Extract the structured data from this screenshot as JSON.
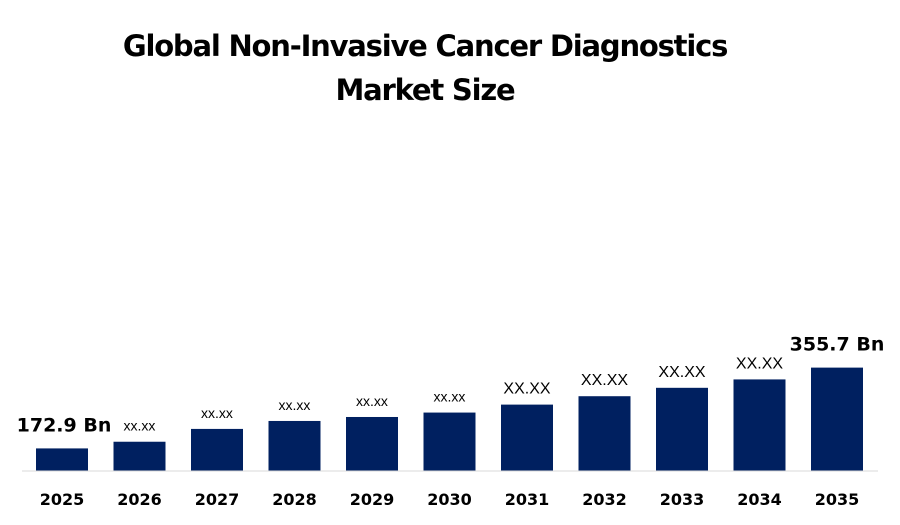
{
  "chart_data": {
    "type": "bar",
    "title_lines": [
      "Global Non-Invasive Cancer Diagnostics",
      "Market Size"
    ],
    "categories": [
      "2025",
      "2026",
      "2027",
      "2028",
      "2029",
      "2030",
      "2031",
      "2032",
      "2033",
      "2034",
      "2035"
    ],
    "values": [
      172.9,
      188,
      217,
      235,
      244,
      254,
      272,
      291,
      310,
      329,
      355.7
    ],
    "data_labels": [
      "172.9 Bn",
      "xx.xx",
      "xx.xx",
      "xx.xx",
      "xx.xx",
      "xx.xx",
      "XX.XX",
      "XX.XX",
      "XX.XX",
      "XX.XX",
      "355.7 Bn"
    ],
    "xlabel": "",
    "ylabel": "",
    "ylim": [
      0,
      400
    ],
    "grid": false,
    "legend": "none",
    "bar_color": "#002060"
  }
}
